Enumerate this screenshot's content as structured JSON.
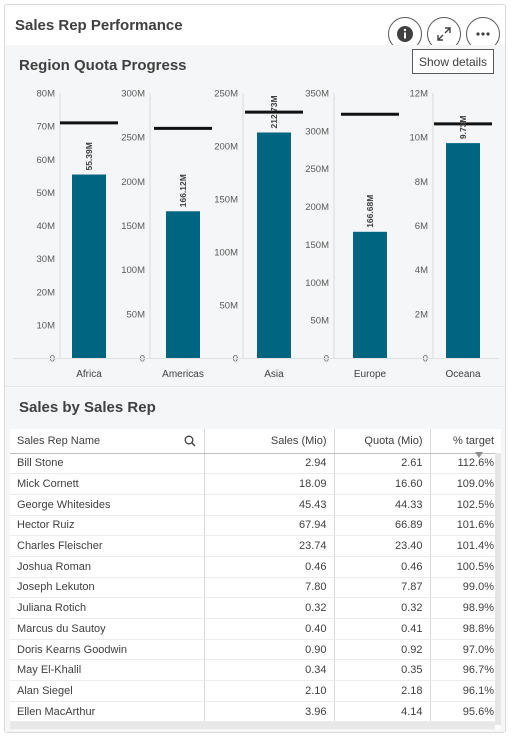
{
  "card": {
    "title": "Sales Rep Performance",
    "tooltip": "Show details"
  },
  "buttons": {
    "info": "info-icon",
    "expand": "expand-icon",
    "more": "more-icon"
  },
  "colors": {
    "bar": "#006580",
    "target": "#111111",
    "axis": "#d9d9d9",
    "text": "#404040"
  },
  "section1": {
    "title": "Region Quota Progress"
  },
  "chart_data": {
    "type": "bar",
    "title": "Region Quota Progress",
    "categories": [
      "Africa",
      "Americas",
      "Asia",
      "Europe",
      "Oceana"
    ],
    "panels": [
      {
        "category": "Africa",
        "value": 55.39,
        "label": "55.39M",
        "target": 71,
        "ylim": [
          0,
          80
        ],
        "ticks": [
          "0",
          "10M",
          "20M",
          "30M",
          "40M",
          "50M",
          "60M",
          "70M",
          "80M"
        ],
        "step": 10
      },
      {
        "category": "Americas",
        "value": 166.12,
        "label": "166.12M",
        "target": 260,
        "ylim": [
          0,
          300
        ],
        "ticks": [
          "0",
          "50M",
          "100M",
          "150M",
          "200M",
          "250M",
          "300M"
        ],
        "step": 50
      },
      {
        "category": "Asia",
        "value": 212.73,
        "label": "212.73M",
        "target": 232,
        "ylim": [
          0,
          250
        ],
        "ticks": [
          "0",
          "50M",
          "100M",
          "150M",
          "200M",
          "250M"
        ],
        "step": 50
      },
      {
        "category": "Europe",
        "value": 166.68,
        "label": "166.68M",
        "target": 322,
        "ylim": [
          0,
          350
        ],
        "ticks": [
          "0",
          "50M",
          "100M",
          "150M",
          "200M",
          "250M",
          "300M",
          "350M"
        ],
        "step": 50
      },
      {
        "category": "Oceana",
        "value": 9.73,
        "label": "9.73M",
        "target": 10.6,
        "ylim": [
          0,
          12
        ],
        "ticks": [
          "0",
          "2M",
          "4M",
          "6M",
          "8M",
          "10M",
          "12M"
        ],
        "step": 2
      }
    ]
  },
  "section2": {
    "title": "Sales by Sales Rep"
  },
  "table": {
    "columns": [
      "Sales Rep Name",
      "Sales (Mio)",
      "Quota (Mio)",
      "% target"
    ],
    "search_icon": "search-icon",
    "sort_icon": "sort-desc-icon",
    "rows": [
      [
        "Bill Stone",
        "2.94",
        "2.61",
        "112.6%"
      ],
      [
        "Mick Cornett",
        "18.09",
        "16.60",
        "109.0%"
      ],
      [
        "George Whitesides",
        "45.43",
        "44.33",
        "102.5%"
      ],
      [
        "Hector Ruiz",
        "67.94",
        "66.89",
        "101.6%"
      ],
      [
        "Charles Fleischer",
        "23.74",
        "23.40",
        "101.4%"
      ],
      [
        "Joshua Roman",
        "0.46",
        "0.46",
        "100.5%"
      ],
      [
        "Joseph Lekuton",
        "7.80",
        "7.87",
        "99.0%"
      ],
      [
        "Juliana Rotich",
        "0.32",
        "0.32",
        "98.9%"
      ],
      [
        "Marcus du Sautoy",
        "0.40",
        "0.41",
        "98.8%"
      ],
      [
        "Doris Kearns Goodwin",
        "0.90",
        "0.92",
        "97.0%"
      ],
      [
        "May El-Khalil",
        "0.34",
        "0.35",
        "96.7%"
      ],
      [
        "Alan Siegel",
        "2.10",
        "2.18",
        "96.1%"
      ],
      [
        "Ellen MacArthur",
        "3.96",
        "4.14",
        "95.6%"
      ]
    ]
  }
}
